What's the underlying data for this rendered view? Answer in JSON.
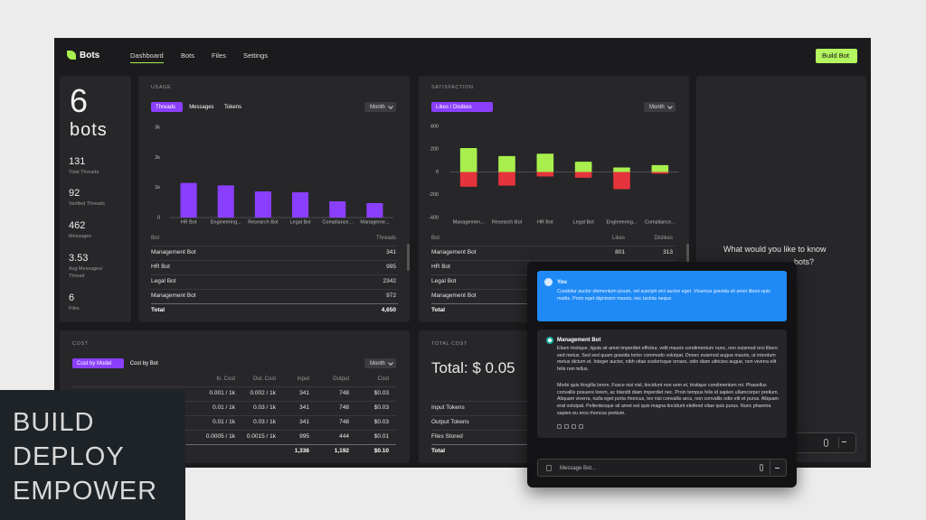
{
  "nav": {
    "logo": "Bots",
    "links": [
      "Dashboard",
      "Bots",
      "Files",
      "Settings"
    ],
    "active": 0,
    "button": "Build Bot"
  },
  "summary": {
    "count": "6",
    "unit": "bots",
    "stats": [
      {
        "value": "131",
        "label": "Total Threads"
      },
      {
        "value": "92",
        "label": "Verified Threads"
      },
      {
        "value": "462",
        "label": "Messages"
      },
      {
        "value": "3.53",
        "label": "Avg Messages/ Thread"
      },
      {
        "value": "6",
        "label": "Files"
      }
    ]
  },
  "usage": {
    "title": "USAGE",
    "tabs": [
      "Threads",
      "Messages",
      "Tokens"
    ],
    "active_tab": 0,
    "period": "Month",
    "chart_data": {
      "type": "bar",
      "categories": [
        "HR Bot",
        "Engineering...",
        "Research Bot",
        "Legal Bot",
        "Compliance...",
        "Manageme..."
      ],
      "values": [
        1150,
        1070,
        870,
        840,
        540,
        480
      ],
      "color": "#8a3ffc",
      "ylim": [
        0,
        3000
      ],
      "yticks": [
        0,
        {
          "value": 1000,
          "label": "1k"
        },
        {
          "value": 2000,
          "label": "2k"
        },
        {
          "value": 3000,
          "label": "3k"
        }
      ],
      "grid": false
    },
    "table": {
      "columns": [
        "Bot",
        "Threads"
      ],
      "rows": [
        [
          "Management Bot",
          "341"
        ],
        [
          "HR Bot",
          "995"
        ],
        [
          "Legal Bot",
          "2342"
        ],
        [
          "Management Bot",
          "972"
        ]
      ],
      "total": [
        "Total",
        "4,650"
      ]
    }
  },
  "satisfaction": {
    "title": "SATISFACTION",
    "tabs": [
      "Likes / Dislikes"
    ],
    "active_tab": 0,
    "period": "Month",
    "chart_data": {
      "type": "bar",
      "categories": [
        "Managemen...",
        "Research Bot",
        "HR Bot",
        "Legal Bot",
        "Engineering...",
        "Compliance..."
      ],
      "series": [
        {
          "color": "#a8ef4d",
          "values": [
            210,
            140,
            160,
            90,
            40,
            60
          ]
        },
        {
          "color": "#e5343c",
          "values": [
            -130,
            -120,
            -40,
            -50,
            -150,
            -15
          ]
        }
      ],
      "ylim": [
        -400,
        400
      ],
      "yticks": [
        -400,
        -200,
        0,
        200,
        400
      ],
      "grid": false
    },
    "table": {
      "columns": [
        "Bot",
        "Likes",
        "Dislikes"
      ],
      "rows": [
        [
          "Management Bot",
          "801",
          "313"
        ],
        [
          "HR Bot"
        ],
        [
          "Legal Bot"
        ],
        [
          "Management Bot"
        ]
      ],
      "total": [
        "Total"
      ]
    }
  },
  "cost": {
    "title": "COST",
    "tabs": [
      "Cost by Model",
      "Cost by Bot"
    ],
    "active_tab": 0,
    "period": "Month",
    "table": {
      "columns": [
        "In. Cost",
        "Out. Cost",
        "Input",
        "Output",
        "Cost"
      ],
      "rows": [
        [
          "0.001 / 1k",
          "0.002 / 1k",
          "341",
          "748",
          "$0.03"
        ],
        [
          "0.01 / 1k",
          "0.03 / 1k",
          "341",
          "748",
          "$0.03"
        ],
        [
          "0.01 / 1k",
          "0.03 / 1k",
          "341",
          "748",
          "$0.03"
        ],
        [
          "0.0005 / 1k",
          "0.0015 / 1k",
          "995",
          "444",
          "$0.01"
        ]
      ],
      "total": [
        "1,336",
        "1,192",
        "$0.10"
      ]
    }
  },
  "total_cost": {
    "title": "TOTAL COST",
    "amount": "Total: $ 0.05",
    "rows": [
      "Input Tokens",
      "Output Tokens",
      "Files Stored"
    ],
    "total": "Total"
  },
  "assistant": {
    "prompt": "What would you like to know",
    "prompt_end": "bots?"
  },
  "chat": {
    "user": {
      "name": "You",
      "text": "Curabitur auctor elementum ipsum, vel suscipit orci auctor eget. Vivamus gravida sit amet libero quis mattis. Proin eget dignissim mauris, nec lacinia neque."
    },
    "bot": {
      "name": "Management Bot",
      "paragraphs": [
        "Etiam tristique, ligula sit amet imperdiet efficitur, velit mauris condimentum nunc, non euismod orci libero sed metus. Sed sed quam gravida tortor commodo volutpat. Donec euismod augue mauris, ut interdum metus dictum et. Integer auctor, nibh vitae scelerisque ornare, odio diam ultricies augue, non viverra elit felis non tellus.",
        "Morbi quis fringilla lorem. Fusce nisi nisl, tincidunt non sem et, tristique condimentum mi. Phasellus convallis posuere lorem, ac blandit diam imperdiet nec. Proin tempus felis id sapien ullamcorper pretium. Aliquam viverra, nulla eget porta rhoncus, leo nisi convallis arcu, non convallis odio elit et purus. Aliquam erat volutpat. Pellentesque sit amet est quis magna tincidunt eleifend vitae quis purus. Nunc pharetra sapien eu eros rhoncus pretium."
      ]
    },
    "placeholder": "Message Bot..."
  },
  "banner": {
    "lines": [
      "BUILD",
      "DEPLOY",
      "EMPOWER"
    ]
  }
}
